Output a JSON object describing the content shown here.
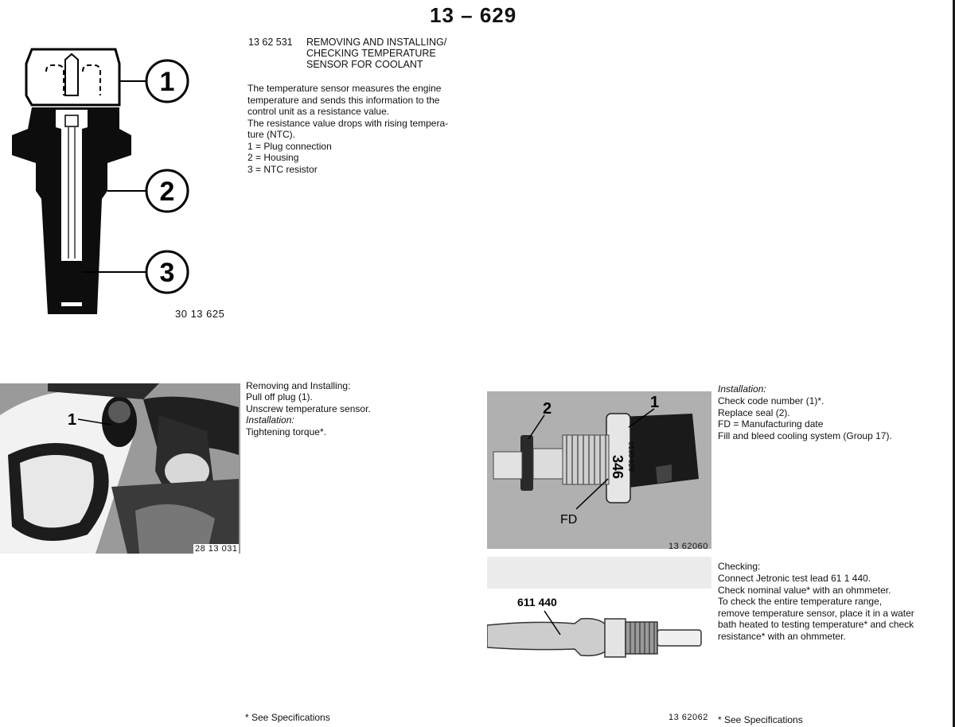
{
  "page": {
    "number": "13 – 629"
  },
  "section": {
    "code": "13 62 531",
    "title_lines": [
      "REMOVING AND INSTALLING/",
      "CHECKING TEMPERATURE",
      "SENSOR FOR COOLANT"
    ],
    "description": "The temperature sensor measures the engine\ntemperature and sends this information to the\ncontrol unit as a resistance value.\nThe resistance value drops with rising tempera-\nture (NTC).\n1 = Plug connection\n2 = Housing\n3 = NTC resistor"
  },
  "figures": {
    "sensor_diagram": {
      "ref": "30 13 625",
      "labels": [
        "1",
        "2",
        "3"
      ]
    },
    "engine_photo": {
      "ref": "28 13 031",
      "label": "1"
    },
    "sensor_photo": {
      "ref": "13 62060",
      "labels": [
        "2",
        "1",
        "FD"
      ],
      "code_marks": [
        "346",
        "0130 026"
      ]
    },
    "test_lead_photo": {
      "ref": "13 62062",
      "label": "611 440"
    }
  },
  "removing": {
    "heading": "Removing and Installing:",
    "body": "Pull off plug (1).\nUnscrew temperature sensor.",
    "install_heading": "Installation:",
    "install_body": "Tightening torque*."
  },
  "installation": {
    "heading": "Installation:",
    "body": "Check code number (1)*.\nReplace seal (2).\nFD = Manufacturing date\nFill and bleed cooling system (Group 17)."
  },
  "checking": {
    "heading": "Checking:",
    "body": "Connect Jetronic test lead 61 1 440.\nCheck nominal value* with an ohmmeter.\nTo check the entire temperature range,\nremove temperature sensor, place it in a water\nbath heated to testing temperature* and check\nresistance* with an ohmmeter."
  },
  "footnotes": {
    "left": "* See Specifications",
    "right": "* See Specifications"
  }
}
